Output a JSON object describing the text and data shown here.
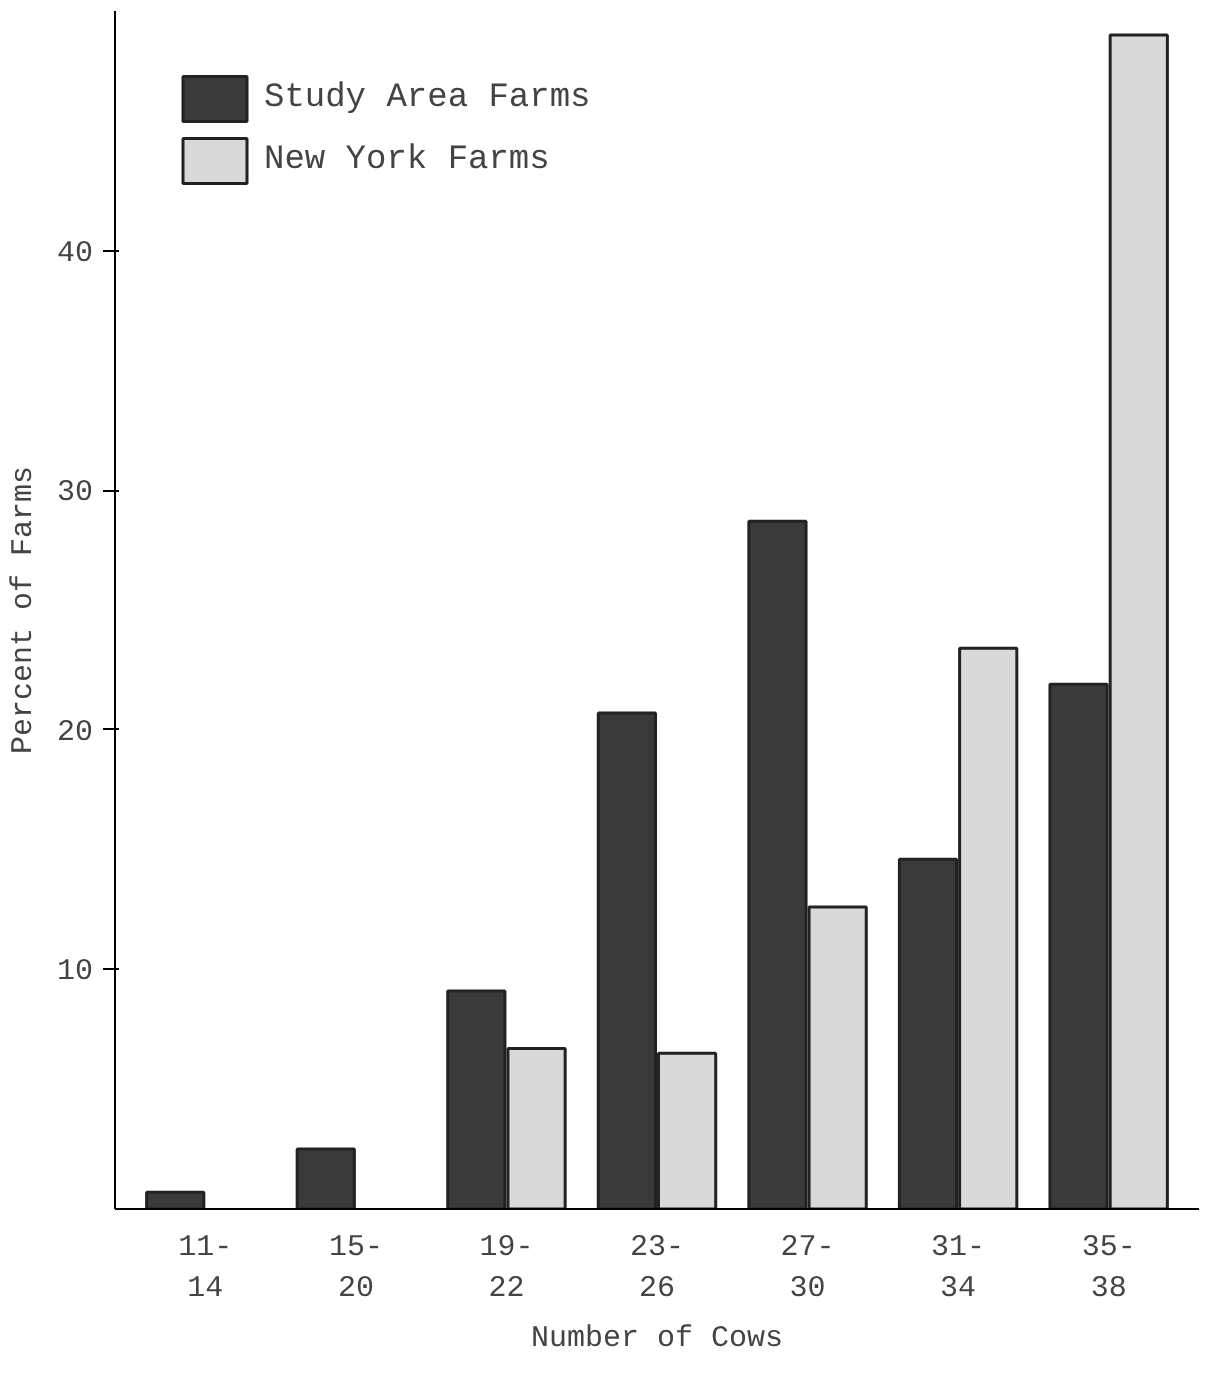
{
  "chart_data": {
    "type": "bar",
    "xlabel": "Number of Cows",
    "ylabel": "Percent of Farms",
    "categories": [
      "11-\n14",
      "15-\n20",
      "19-\n22",
      "23-\n26",
      "27-\n30",
      "31-\n34",
      "35-\n38"
    ],
    "series": [
      {
        "name": "Study Area Farms",
        "color": "#3a3a3a",
        "values": [
          0.7,
          2.5,
          9.1,
          20.7,
          28.7,
          14.6,
          21.9
        ]
      },
      {
        "name": "New York Farms",
        "color": "#d9d9d9",
        "values": [
          null,
          null,
          6.7,
          6.5,
          12.6,
          23.4,
          49
        ]
      }
    ],
    "ylim": [
      0,
      50
    ],
    "yticks": [
      10,
      20,
      30,
      40
    ],
    "grid": false,
    "legend": "top left"
  }
}
